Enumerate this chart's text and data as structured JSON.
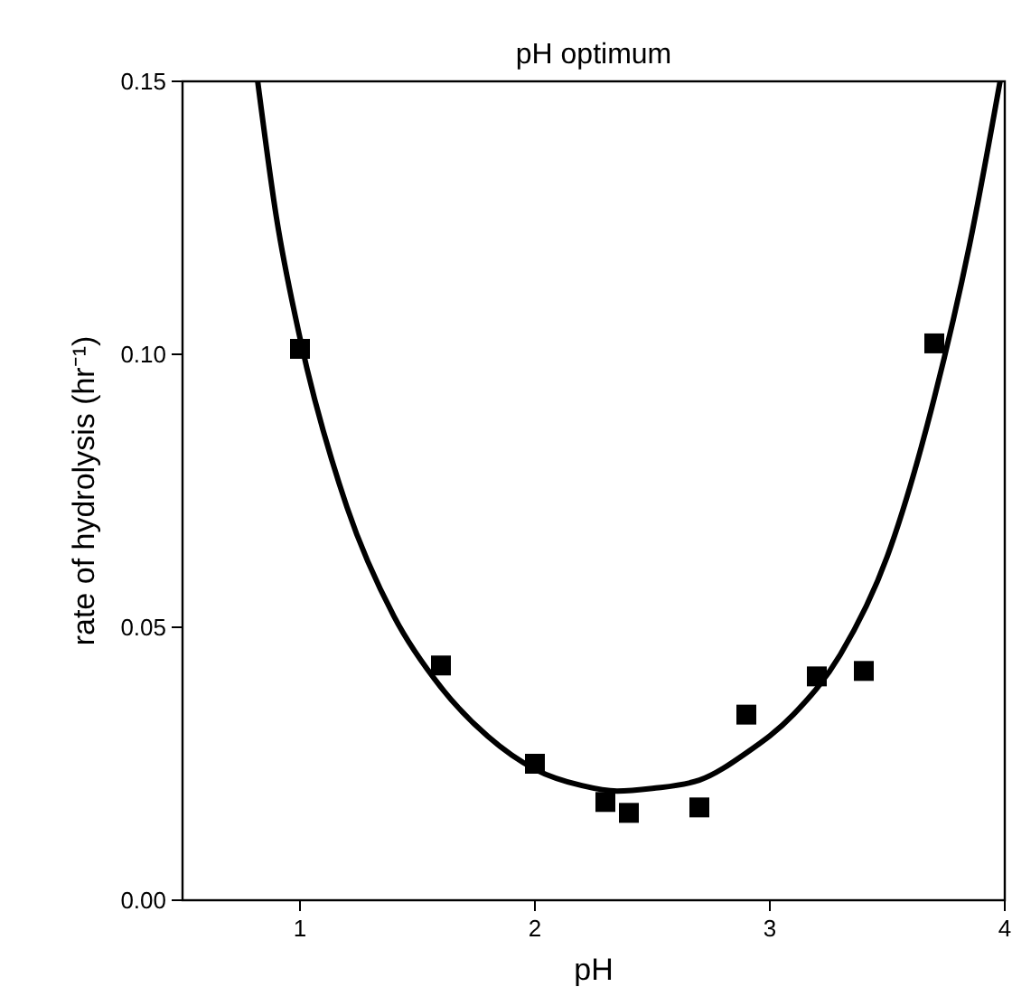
{
  "chart_data": {
    "type": "scatter",
    "title": "pH optimum",
    "xlabel": "pH",
    "ylabel": "rate of hydrolysis (hr⁻¹)",
    "xlim": [
      0.5,
      4
    ],
    "ylim": [
      0,
      0.15
    ],
    "xticks": [
      1,
      2,
      3,
      4
    ],
    "yticks": [
      {
        "value": 0,
        "label": "0.00"
      },
      {
        "value": 0.05,
        "label": "0.05"
      },
      {
        "value": 0.1,
        "label": "0.10"
      },
      {
        "value": 0.15,
        "label": "0.15"
      }
    ],
    "grid": false,
    "series": [
      {
        "color": "#000000",
        "marker": "square",
        "x": [
          1.0,
          1.6,
          2.0,
          2.3,
          2.4,
          2.7,
          2.9,
          3.2,
          3.4,
          3.7
        ],
        "values": [
          0.101,
          0.043,
          0.025,
          0.018,
          0.016,
          0.017,
          0.034,
          0.041,
          0.042,
          0.102
        ]
      },
      {
        "type": "line",
        "color": "#000000",
        "line_style": "solid",
        "x": [
          0.82,
          0.9,
          1.0,
          1.2,
          1.4,
          1.6,
          1.8,
          2.0,
          2.2,
          2.35,
          2.5,
          2.7,
          2.9,
          3.1,
          3.3,
          3.5,
          3.7,
          3.85,
          3.98
        ],
        "values": [
          0.15,
          0.125,
          0.103,
          0.072,
          0.052,
          0.039,
          0.03,
          0.024,
          0.021,
          0.02,
          0.0205,
          0.022,
          0.027,
          0.034,
          0.045,
          0.063,
          0.092,
          0.12,
          0.15
        ]
      }
    ]
  }
}
